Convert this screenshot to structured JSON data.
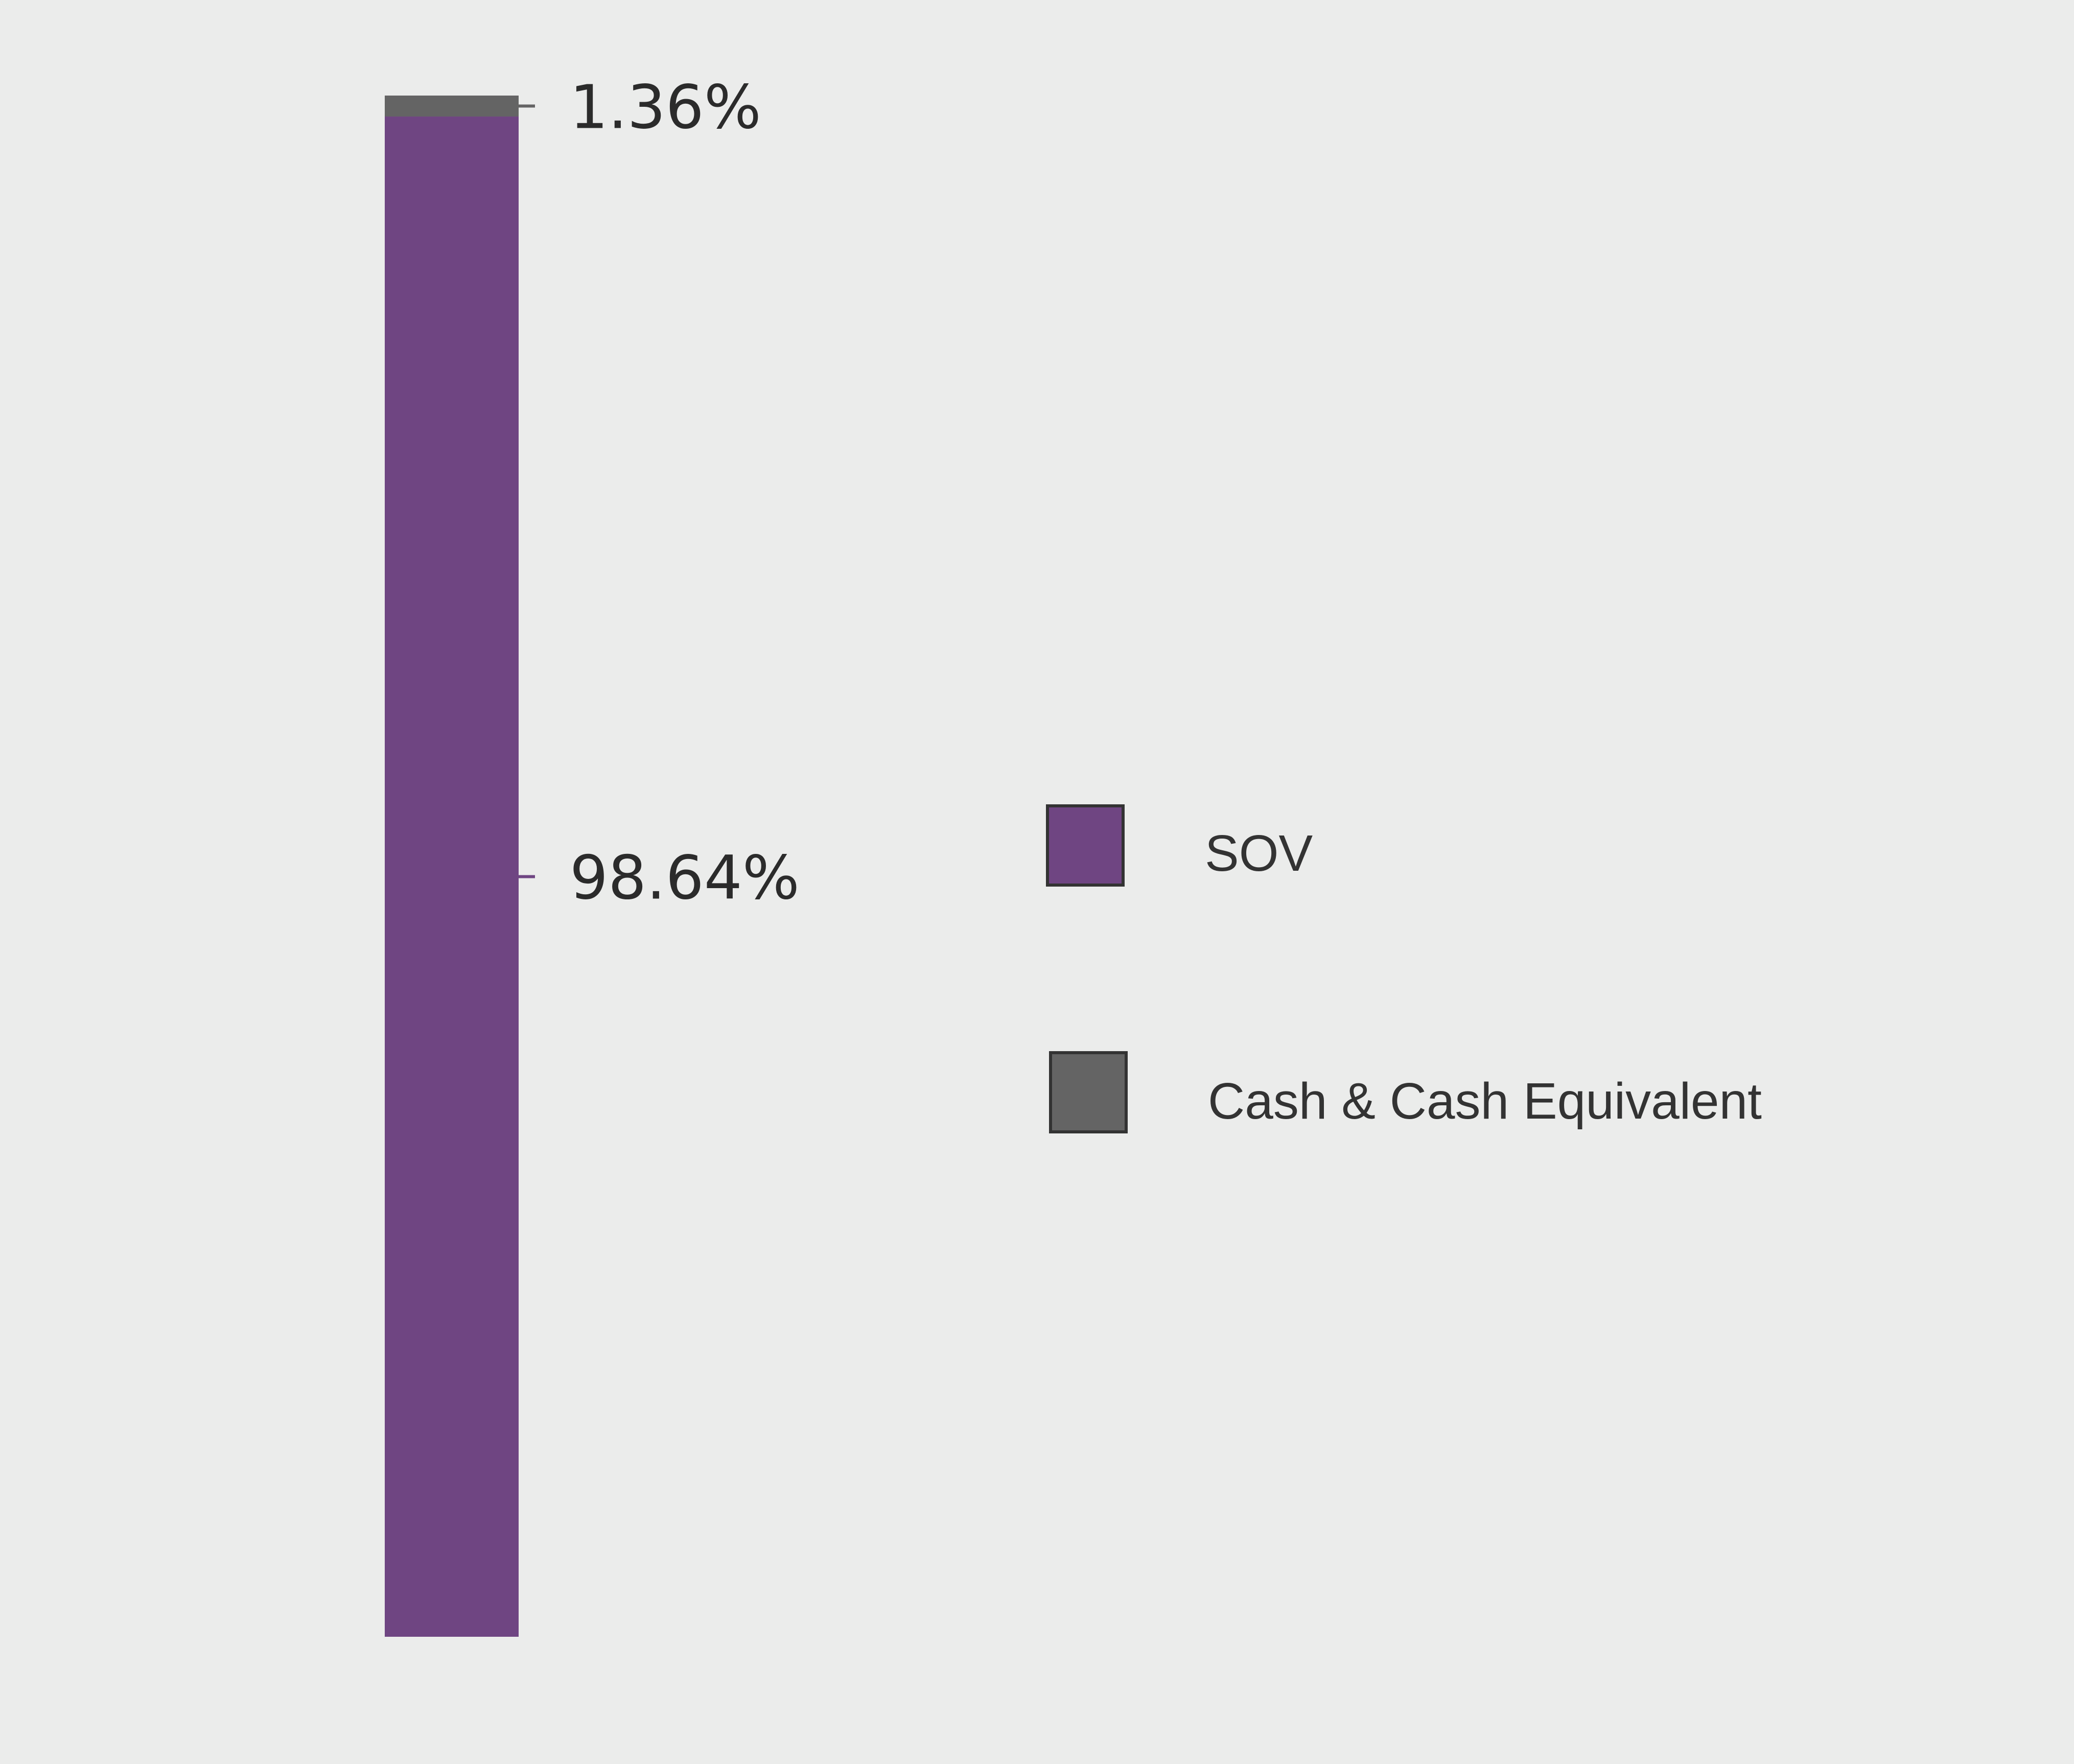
{
  "chart_data": {
    "type": "bar",
    "stacked": true,
    "orientation": "vertical",
    "categories": [
      ""
    ],
    "series": [
      {
        "name": "SOV",
        "values": [
          98.64
        ],
        "label": "98.64%",
        "color": "#6f4582"
      },
      {
        "name": "Cash & Cash Equivalent",
        "values": [
          1.36
        ],
        "label": "1.36%",
        "color": "#646464"
      }
    ],
    "ylim": [
      0,
      100
    ],
    "title": "",
    "xlabel": "",
    "ylabel": "",
    "grid": false,
    "legend_position": "right"
  },
  "colors": {
    "background": "#ebeceb",
    "legend_border": "#333333"
  }
}
